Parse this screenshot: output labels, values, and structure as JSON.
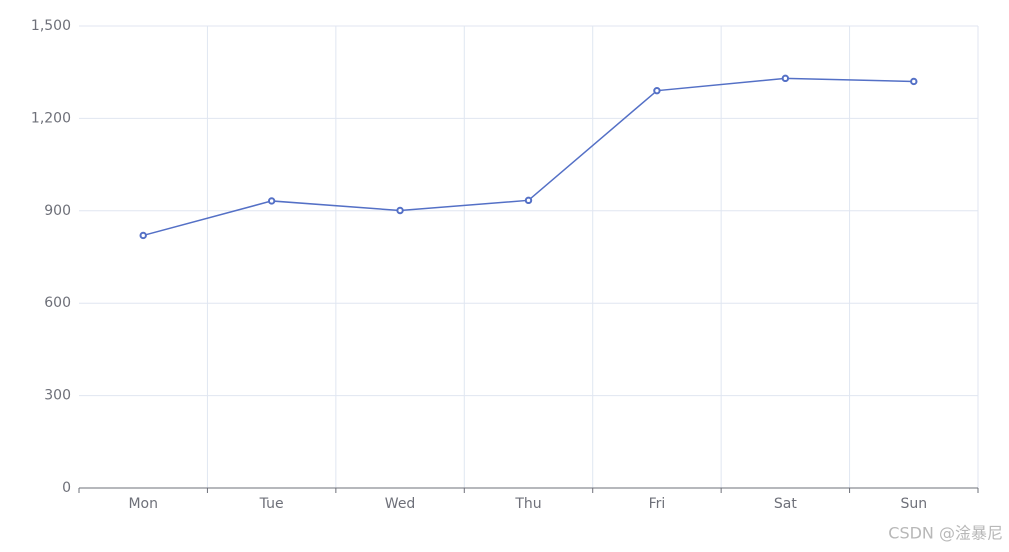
{
  "chart_data": {
    "type": "line",
    "categories": [
      "Mon",
      "Tue",
      "Wed",
      "Thu",
      "Fri",
      "Sat",
      "Sun"
    ],
    "series": [
      {
        "values": [
          820,
          932,
          901,
          934,
          1290,
          1330,
          1320
        ],
        "color": "#5470c6"
      }
    ],
    "ylim": [
      0,
      1500
    ],
    "yticks": [
      0,
      300,
      600,
      900,
      {
        "value": 1200,
        "label": "1,200"
      },
      {
        "value": 1500,
        "label": "1,500"
      }
    ],
    "grid": true
  },
  "watermark": "CSDN @淦暴尼"
}
